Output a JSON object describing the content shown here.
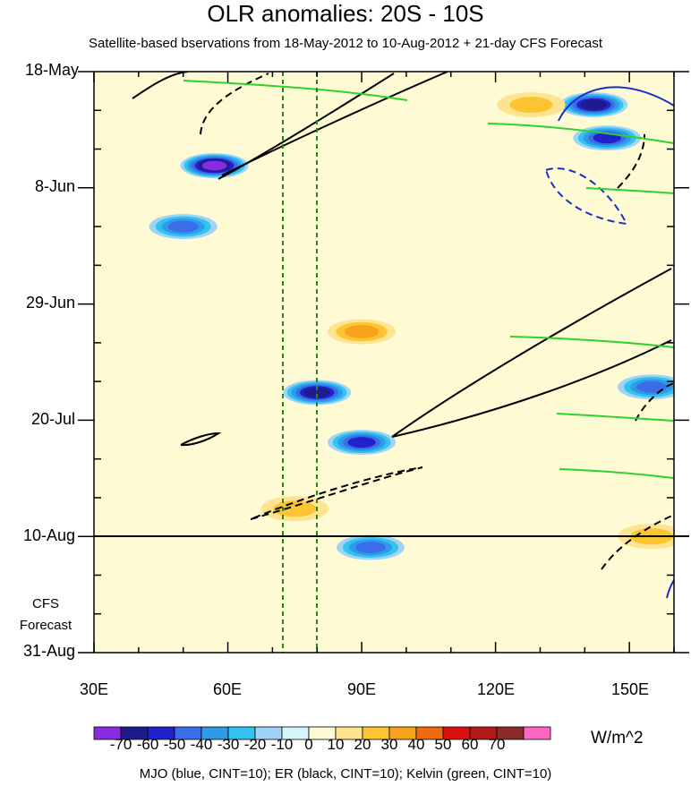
{
  "chart_data": {
    "type": "heatmap",
    "title": "OLR anomalies: 20S - 10S",
    "subtitle": "Satellite-based bservations from 18-May-2012 to 10-Aug-2012 + 21-day CFS Forecast",
    "x_axis": {
      "ticks": [
        "30E",
        "60E",
        "90E",
        "120E",
        "150E"
      ],
      "range": [
        30,
        160
      ]
    },
    "y_axis": {
      "ticks": [
        "18-May",
        "8-Jun",
        "29-Jun",
        "20-Jul",
        "10-Aug",
        "31-Aug"
      ]
    },
    "forecast_label": [
      "CFS",
      "Forecast"
    ],
    "forecast_start": "10-Aug",
    "reference_lines_lon": [
      72.5,
      80
    ],
    "colorbar": {
      "units": "W/m^2",
      "levels": [
        "-70",
        "-60",
        "-50",
        "-40",
        "-30",
        "-20",
        "-10",
        "0",
        "10",
        "20",
        "30",
        "40",
        "50",
        "60",
        "70"
      ],
      "colors": [
        "#8a2be2",
        "#1c1c8c",
        "#2222cc",
        "#3a6ee8",
        "#2f9be8",
        "#33c3f0",
        "#9fd3f7",
        "#d6f6fb",
        "#fefbd4",
        "#fde491",
        "#fcc433",
        "#f7a21b",
        "#ef6a0c",
        "#d81010",
        "#b21818",
        "#8c2a2a",
        "#ff66c4"
      ]
    },
    "overlays": [
      "MJO (blue, CINT=10)",
      "ER (black, CINT=10)",
      "Kelvin (green, CINT=10)"
    ],
    "footer": "MJO (blue, CINT=10); ER (black, CINT=10); Kelvin (green, CINT=10)",
    "anomaly_features": [
      {
        "lon": 57,
        "date": "4-Jun",
        "value": -70
      },
      {
        "lon": 80,
        "date": "15-Jul",
        "value": -60
      },
      {
        "lon": 90,
        "date": "24-Jul",
        "value": -50
      },
      {
        "lon": 92,
        "date": "12-Aug",
        "value": -40
      },
      {
        "lon": 50,
        "date": "15-Jun",
        "value": -40
      },
      {
        "lon": 142,
        "date": "24-May",
        "value": -60
      },
      {
        "lon": 145,
        "date": "30-May",
        "value": -50
      },
      {
        "lon": 155,
        "date": "14-Jul",
        "value": -40
      },
      {
        "lon": 90,
        "date": "4-Jul",
        "value": 30
      },
      {
        "lon": 75,
        "date": "5-Aug",
        "value": 20
      },
      {
        "lon": 128,
        "date": "24-May",
        "value": 20
      },
      {
        "lon": 155,
        "date": "10-Aug",
        "value": 20
      }
    ]
  }
}
